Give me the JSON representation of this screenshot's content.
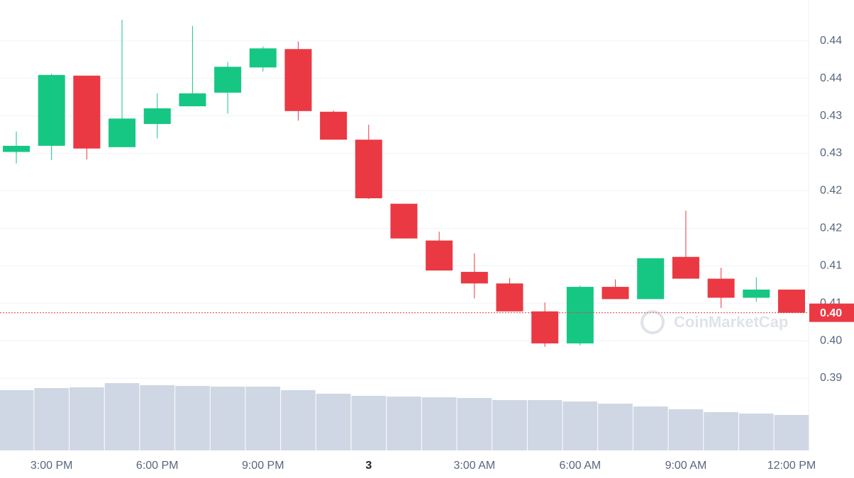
{
  "chart_data": {
    "type": "candlestick",
    "categories": [
      null,
      "3:00 PM",
      null,
      null,
      "6:00 PM",
      null,
      null,
      "9:00 PM",
      null,
      null,
      "3",
      null,
      null,
      "3:00 AM",
      null,
      null,
      "6:00 AM",
      null,
      null,
      "9:00 AM",
      null,
      null,
      "12:00 PM"
    ],
    "open": [
      0.4277,
      0.4286,
      0.4389,
      0.4284,
      0.4318,
      0.4344,
      0.4364,
      0.4401,
      0.4428,
      0.4336,
      0.4295,
      0.4201,
      0.4147,
      0.4101,
      0.4084,
      0.4043,
      0.3996,
      0.4079,
      0.4061,
      0.4123,
      0.4091,
      0.4063,
      0.4075
    ],
    "high": [
      0.4307,
      0.4392,
      0.4389,
      0.4471,
      0.4363,
      0.4462,
      0.4409,
      0.4432,
      0.4439,
      0.4338,
      0.4317,
      0.4201,
      0.416,
      0.4128,
      0.4092,
      0.4056,
      0.4081,
      0.409,
      0.4121,
      0.4191,
      0.4107,
      0.4093,
      0.4075
    ],
    "low": [
      0.426,
      0.4265,
      0.4266,
      0.4284,
      0.4297,
      0.4344,
      0.4333,
      0.4395,
      0.4323,
      0.4295,
      0.4208,
      0.415,
      0.4103,
      0.4062,
      0.4043,
      0.3991,
      0.3993,
      0.4061,
      0.4061,
      0.4091,
      0.4048,
      0.4057,
      0.4041
    ],
    "close": [
      0.4286,
      0.439,
      0.4282,
      0.4326,
      0.4341,
      0.4363,
      0.4402,
      0.4429,
      0.4337,
      0.4295,
      0.4209,
      0.415,
      0.4103,
      0.4084,
      0.4043,
      0.3996,
      0.4079,
      0.4061,
      0.4121,
      0.4091,
      0.4063,
      0.4075,
      0.4041
    ],
    "volume": [
      85,
      88,
      89,
      95,
      92,
      91,
      90,
      90,
      85,
      80,
      77,
      76,
      75,
      74,
      71,
      71,
      69,
      66,
      62,
      58,
      54,
      52,
      50
    ],
    "volume_color": "#cfd6e4",
    "vlim": [
      0,
      200
    ],
    "up_color": "#16c784",
    "down_color": "#ea3943",
    "ylim": [
      0.3839,
      0.45
    ],
    "yticks": [
      {
        "value": 0.3945,
        "label": "0.39"
      },
      {
        "value": 0.4,
        "label": "0.40"
      },
      {
        "value": 0.4055,
        "label": "0.41"
      },
      {
        "value": 0.411,
        "label": "0.41"
      },
      {
        "value": 0.4165,
        "label": "0.42"
      },
      {
        "value": 0.422,
        "label": "0.42"
      },
      {
        "value": 0.4275,
        "label": "0.43"
      },
      {
        "value": 0.433,
        "label": "0.43"
      },
      {
        "value": 0.4385,
        "label": "0.44"
      },
      {
        "value": 0.444,
        "label": "0.44"
      }
    ],
    "grid": true,
    "current_price": {
      "value": 0.4041,
      "label": "0.40"
    },
    "watermark": "CoinMarketCap"
  }
}
